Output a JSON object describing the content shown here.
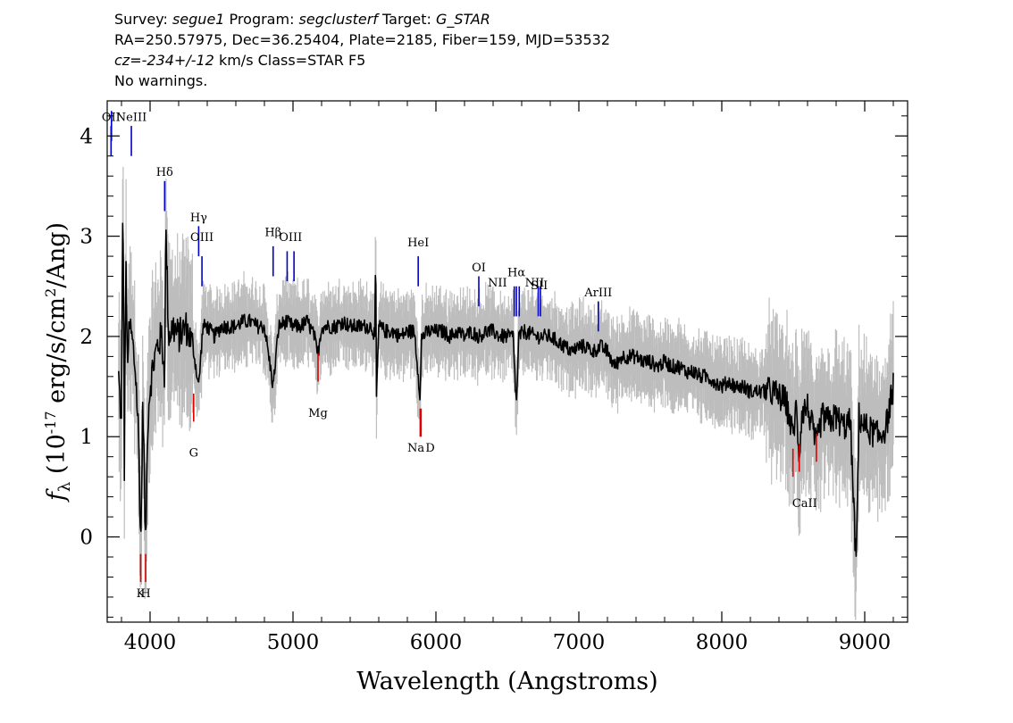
{
  "header": {
    "line1": {
      "survey_label": "Survey: ",
      "survey": "segue1",
      "program_label": " Program: ",
      "program": "segclusterf",
      "target_label": " Target: ",
      "target": "G_STAR"
    },
    "line2": "RA=250.57975, Dec=36.25404, Plate=2185, Fiber=159, MJD=53532",
    "line3": {
      "cz_label": "cz=",
      "cz_value": "-234+/-12",
      "cz_rest": " km/s Class=STAR F5"
    },
    "line4": "No warnings."
  },
  "chart_data": {
    "type": "line",
    "xlabel": "Wavelength (Angstroms)",
    "ylabel_prefix": "f",
    "ylabel_sub": "λ",
    "ylabel_units": " (10",
    "ylabel_exp": "-17",
    "ylabel_units2": " erg/s/cm",
    "ylabel_sq": "2",
    "ylabel_units3": "/Ang)",
    "xlim": [
      3700,
      9300
    ],
    "ylim": [
      -0.85,
      4.35
    ],
    "xticks": [
      4000,
      5000,
      6000,
      7000,
      8000,
      9000
    ],
    "xtick_labels": [
      "4000",
      "5000",
      "6000",
      "7000",
      "8000",
      "9000"
    ],
    "yticks": [
      0,
      1,
      2,
      3,
      4
    ],
    "ytick_labels": [
      "0",
      "1",
      "2",
      "3",
      "4"
    ],
    "colors": {
      "flux": "#000000",
      "error": "#bdbdbd",
      "emission": "#0000cc",
      "absorption": "#e00000"
    },
    "series": [
      {
        "role": "flux",
        "points": [
          [
            3780,
            1.6
          ],
          [
            3800,
            1.1
          ],
          [
            3810,
            3.6
          ],
          [
            3820,
            0.7
          ],
          [
            3830,
            2.8
          ],
          [
            3840,
            1.8
          ],
          [
            3860,
            2.1
          ],
          [
            3880,
            1.9
          ],
          [
            3900,
            1.6
          ],
          [
            3920,
            1.0
          ],
          [
            3935,
            -0.1
          ],
          [
            3950,
            1.4
          ],
          [
            3968,
            -0.1
          ],
          [
            3985,
            1.2
          ],
          [
            4000,
            1.5
          ],
          [
            4020,
            1.7
          ],
          [
            4050,
            1.9
          ],
          [
            4080,
            2.0
          ],
          [
            4102,
            1.6
          ],
          [
            4110,
            3.1
          ],
          [
            4130,
            2.0
          ],
          [
            4160,
            2.1
          ],
          [
            4200,
            2.0
          ],
          [
            4250,
            2.1
          ],
          [
            4300,
            1.9
          ],
          [
            4340,
            1.5
          ],
          [
            4370,
            2.1
          ],
          [
            4400,
            2.1
          ],
          [
            4450,
            2.0
          ],
          [
            4500,
            2.1
          ],
          [
            4550,
            2.1
          ],
          [
            4600,
            2.1
          ],
          [
            4650,
            2.15
          ],
          [
            4700,
            2.15
          ],
          [
            4750,
            2.1
          ],
          [
            4800,
            2.1
          ],
          [
            4861,
            1.5
          ],
          [
            4900,
            2.1
          ],
          [
            4950,
            2.15
          ],
          [
            5000,
            2.1
          ],
          [
            5050,
            2.1
          ],
          [
            5100,
            2.15
          ],
          [
            5150,
            2.0
          ],
          [
            5172,
            1.8
          ],
          [
            5200,
            2.1
          ],
          [
            5250,
            2.1
          ],
          [
            5300,
            2.1
          ],
          [
            5350,
            2.15
          ],
          [
            5400,
            2.1
          ],
          [
            5450,
            2.1
          ],
          [
            5500,
            2.1
          ],
          [
            5550,
            2.1
          ],
          [
            5575,
            2.0
          ],
          [
            5578,
            3.6
          ],
          [
            5582,
            1.3
          ],
          [
            5600,
            2.1
          ],
          [
            5650,
            2.05
          ],
          [
            5700,
            2.05
          ],
          [
            5750,
            2.0
          ],
          [
            5800,
            2.05
          ],
          [
            5850,
            2.05
          ],
          [
            5890,
            1.4
          ],
          [
            5900,
            2.0
          ],
          [
            5950,
            2.05
          ],
          [
            6000,
            2.05
          ],
          [
            6050,
            2.05
          ],
          [
            6100,
            2.0
          ],
          [
            6150,
            2.05
          ],
          [
            6200,
            2.0
          ],
          [
            6250,
            2.05
          ],
          [
            6300,
            2.0
          ],
          [
            6350,
            2.05
          ],
          [
            6400,
            2.05
          ],
          [
            6450,
            2.0
          ],
          [
            6500,
            2.0
          ],
          [
            6540,
            2.0
          ],
          [
            6563,
            1.3
          ],
          [
            6580,
            2.0
          ],
          [
            6620,
            2.05
          ],
          [
            6700,
            2.0
          ],
          [
            6750,
            2.0
          ],
          [
            6800,
            2.0
          ],
          [
            6850,
            1.95
          ],
          [
            6900,
            1.9
          ],
          [
            6950,
            1.85
          ],
          [
            7000,
            1.9
          ],
          [
            7050,
            1.9
          ],
          [
            7100,
            1.85
          ],
          [
            7150,
            1.9
          ],
          [
            7200,
            1.85
          ],
          [
            7250,
            1.7
          ],
          [
            7300,
            1.8
          ],
          [
            7350,
            1.8
          ],
          [
            7400,
            1.8
          ],
          [
            7450,
            1.75
          ],
          [
            7500,
            1.75
          ],
          [
            7550,
            1.7
          ],
          [
            7600,
            1.75
          ],
          [
            7650,
            1.7
          ],
          [
            7700,
            1.7
          ],
          [
            7750,
            1.65
          ],
          [
            7800,
            1.65
          ],
          [
            7850,
            1.6
          ],
          [
            7900,
            1.6
          ],
          [
            7950,
            1.55
          ],
          [
            8000,
            1.5
          ],
          [
            8050,
            1.55
          ],
          [
            8100,
            1.5
          ],
          [
            8150,
            1.5
          ],
          [
            8200,
            1.45
          ],
          [
            8250,
            1.45
          ],
          [
            8300,
            1.45
          ],
          [
            8350,
            1.45
          ],
          [
            8400,
            1.4
          ],
          [
            8450,
            1.35
          ],
          [
            8498,
            1.0
          ],
          [
            8520,
            1.3
          ],
          [
            8542,
            0.8
          ],
          [
            8560,
            1.25
          ],
          [
            8600,
            1.3
          ],
          [
            8662,
            0.9
          ],
          [
            8700,
            1.2
          ],
          [
            8750,
            1.15
          ],
          [
            8800,
            1.2
          ],
          [
            8850,
            1.1
          ],
          [
            8900,
            1.15
          ],
          [
            8940,
            -0.3
          ],
          [
            8960,
            1.2
          ],
          [
            9000,
            1.1
          ],
          [
            9050,
            1.05
          ],
          [
            9100,
            1.0
          ],
          [
            9150,
            1.1
          ],
          [
            9200,
            1.5
          ]
        ]
      }
    ],
    "emission_lines": [
      {
        "label": "OII",
        "wavelength": 3727,
        "y": 3.8
      },
      {
        "label": "OII",
        "wavelength": 3730,
        "y": 3.95
      },
      {
        "label": "NeIII",
        "wavelength": 3869,
        "y": 3.8
      },
      {
        "label": "Hδ",
        "wavelength": 4102,
        "y": 3.25
      },
      {
        "label": "Hγ",
        "wavelength": 4340,
        "y": 2.8
      },
      {
        "label": "OIII",
        "wavelength": 4363,
        "y": 2.5
      },
      {
        "label": "Hβ",
        "wavelength": 4861,
        "y": 2.6
      },
      {
        "label": "OIII",
        "wavelength": 4959,
        "y": 2.55
      },
      {
        "label": "OIII",
        "wavelength": 5007,
        "y": 2.55
      },
      {
        "label": "HeI",
        "wavelength": 5876,
        "y": 2.5
      },
      {
        "label": "OI",
        "wavelength": 6300,
        "y": 2.3
      },
      {
        "label": "NII",
        "wavelength": 6548,
        "y": 2.2
      },
      {
        "label": "Hα",
        "wavelength": 6563,
        "y": 2.2
      },
      {
        "label": "NII",
        "wavelength": 6583,
        "y": 2.2
      },
      {
        "label": "SII",
        "wavelength": 6716,
        "y": 2.2
      },
      {
        "label": "SII",
        "wavelength": 6731,
        "y": 2.2
      },
      {
        "label": "ArIII",
        "wavelength": 7136,
        "y": 2.05
      }
    ],
    "absorption_lines": [
      {
        "label": "K",
        "wavelength": 3934,
        "y": -0.45
      },
      {
        "label": "H",
        "wavelength": 3969,
        "y": -0.45
      },
      {
        "label": "G",
        "wavelength": 4305,
        "y": 1.15
      },
      {
        "label": "Mg",
        "wavelength": 5175,
        "y": 1.55
      },
      {
        "label": "Na",
        "wavelength": 5890,
        "y": 1.0
      },
      {
        "label": "D",
        "wavelength": 5896,
        "y": 1.0
      },
      {
        "label": "CaII",
        "wavelength": 8498,
        "y": 0.6
      },
      {
        "label": "CaII",
        "wavelength": 8542,
        "y": 0.65
      },
      {
        "label": "CaII",
        "wavelength": 8662,
        "y": 0.75
      }
    ],
    "emission_text": [
      {
        "text": "OII",
        "wavelength": 3727,
        "y": 4.15
      },
      {
        "text": "NeIII",
        "wavelength": 3869,
        "y": 4.15
      },
      {
        "text": "Hδ",
        "wavelength": 4102,
        "y": 3.6
      },
      {
        "text": "Hγ",
        "wavelength": 4340,
        "y": 3.15
      },
      {
        "text": "OIII",
        "wavelength": 4363,
        "y": 2.95
      },
      {
        "text": "Hβ",
        "wavelength": 4861,
        "y": 3.0
      },
      {
        "text": "OIII",
        "wavelength": 4983,
        "y": 2.95
      },
      {
        "text": "HeI",
        "wavelength": 5876,
        "y": 2.9
      },
      {
        "text": "OI",
        "wavelength": 6300,
        "y": 2.65
      },
      {
        "text": "NII",
        "wavelength": 6430,
        "y": 2.5
      },
      {
        "text": "Hα",
        "wavelength": 6563,
        "y": 2.6
      },
      {
        "text": "NII",
        "wavelength": 6690,
        "y": 2.5
      },
      {
        "text": "SII",
        "wavelength": 6723,
        "y": 2.47
      },
      {
        "text": "ArIII",
        "wavelength": 7136,
        "y": 2.4
      }
    ],
    "absorption_text": [
      {
        "text": "K",
        "wavelength": 3934,
        "y": -0.6
      },
      {
        "text": "H",
        "wavelength": 3969,
        "y": -0.6
      },
      {
        "text": "G",
        "wavelength": 4305,
        "y": 0.8
      },
      {
        "text": "Mg",
        "wavelength": 5175,
        "y": 1.2
      },
      {
        "text": "Na",
        "wavelength": 5860,
        "y": 0.85
      },
      {
        "text": "D",
        "wavelength": 5960,
        "y": 0.85
      },
      {
        "text": "CaII",
        "wavelength": 8580,
        "y": 0.3
      }
    ]
  }
}
